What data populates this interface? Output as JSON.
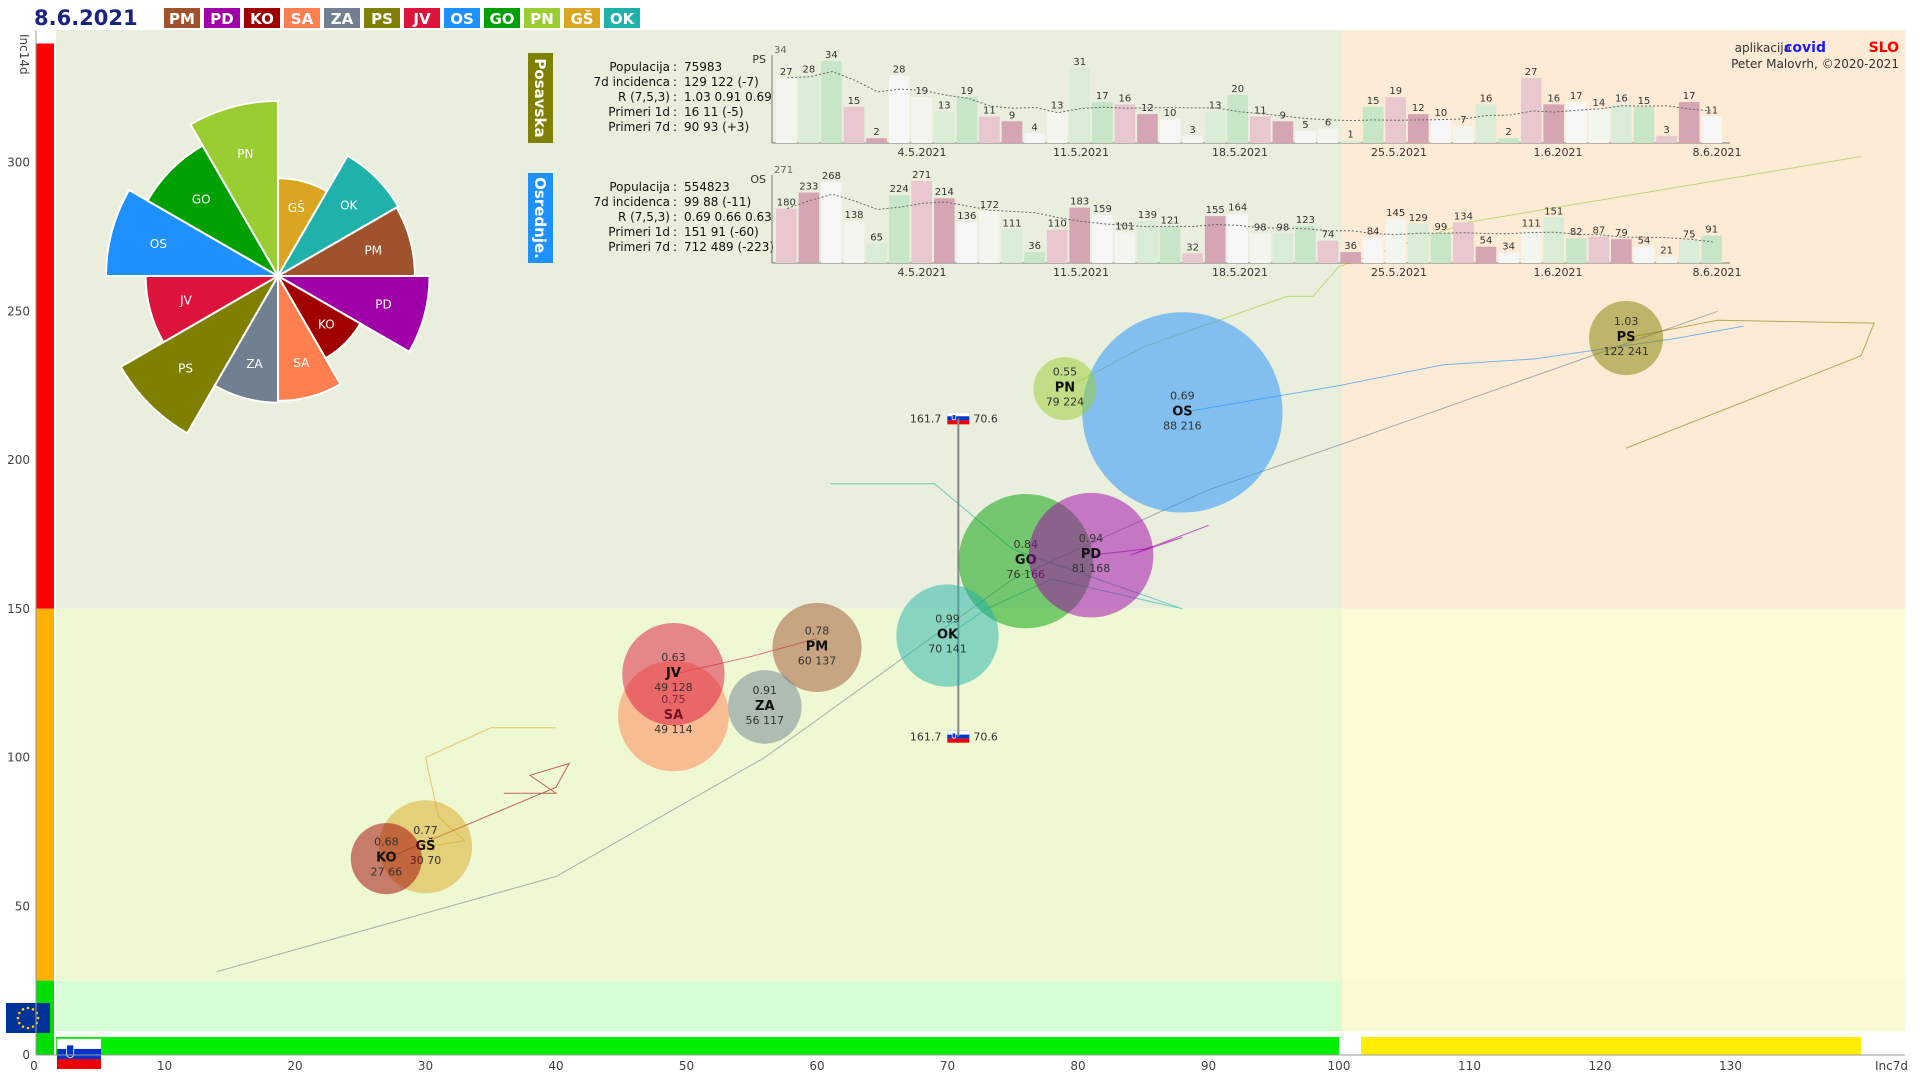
{
  "date": "8.6.2021",
  "credit": {
    "prefix": "aplikacija",
    "brand_a": "covid",
    "brand_b": "SLO",
    "author": "Peter Malovrh, ©2020-2021"
  },
  "colors": {
    "PM": "#a0522d",
    "PD": "#a000a8",
    "KO": "#a00000",
    "SA": "#ff7f50",
    "ZA": "#708090",
    "PS": "#808000",
    "JV": "#dc143c",
    "OS": "#1e90ff",
    "GO": "#00a000",
    "PN": "#9acd32",
    "GS": "#daa520",
    "OK": "#20b2aa"
  },
  "legend": [
    {
      "code": "PM",
      "label": "PM"
    },
    {
      "code": "PD",
      "label": "PD"
    },
    {
      "code": "KO",
      "label": "KO"
    },
    {
      "code": "SA",
      "label": "SA"
    },
    {
      "code": "ZA",
      "label": "ZA"
    },
    {
      "code": "PS",
      "label": "PS"
    },
    {
      "code": "JV",
      "label": "JV"
    },
    {
      "code": "OS",
      "label": "OS"
    },
    {
      "code": "GO",
      "label": "GO"
    },
    {
      "code": "PN",
      "label": "PN"
    },
    {
      "code": "GS",
      "label": "GŠ"
    },
    {
      "code": "OK",
      "label": "OK"
    }
  ],
  "chart_data": {
    "type": "scatter",
    "xlabel": "Inc7d",
    "ylabel": "Inc14d",
    "xlim": [
      0,
      140
    ],
    "ylim": [
      0,
      340
    ],
    "x_ticks": [
      0,
      10,
      20,
      30,
      40,
      50,
      60,
      70,
      80,
      90,
      100,
      110,
      120,
      130
    ],
    "y_ticks": [
      0,
      50,
      100,
      150,
      200,
      250,
      300
    ],
    "zones_y": [
      {
        "from": 150,
        "to": 340,
        "color": "#ff0000"
      },
      {
        "from": 25,
        "to": 150,
        "color": "#ffb000"
      },
      {
        "from": 0,
        "to": 25,
        "color": "#00dd00"
      }
    ],
    "zones_x": [
      {
        "from": 0,
        "to": 100,
        "color": "#00ee00"
      },
      {
        "from": 100,
        "to": 140,
        "color": "#ffee00"
      }
    ],
    "reference": {
      "label_left": "161.7",
      "label_right": "70.6",
      "x": 70.6,
      "y_top": 214,
      "y_bottom": 107
    },
    "bubbles": [
      {
        "code": "PM",
        "label": "PM",
        "r": "0.78",
        "x": 60,
        "y": 137,
        "pop": "60 137"
      },
      {
        "code": "PD",
        "label": "PD",
        "r": "0.94",
        "x": 81,
        "y": 168,
        "pop": "81 168"
      },
      {
        "code": "KO",
        "label": "KO",
        "r": "0.68",
        "x": 27,
        "y": 66,
        "pop": "27 66"
      },
      {
        "code": "SA",
        "label": "SA",
        "r": "0.75",
        "x": 49,
        "y": 114,
        "pop": "49 114"
      },
      {
        "code": "ZA",
        "label": "ZA",
        "r": "0.91",
        "x": 56,
        "y": 117,
        "pop": "56 117"
      },
      {
        "code": "PS",
        "label": "PS",
        "r": "1.03",
        "x": 122,
        "y": 241,
        "pop": "122 241"
      },
      {
        "code": "JV",
        "label": "JV",
        "r": "0.63",
        "x": 49,
        "y": 128,
        "pop": "49 128"
      },
      {
        "code": "OS",
        "label": "OS",
        "r": "0.69",
        "x": 88,
        "y": 216,
        "pop": "88 216"
      },
      {
        "code": "GO",
        "label": "GO",
        "r": "0.84",
        "x": 76,
        "y": 166,
        "pop": "76 166"
      },
      {
        "code": "PN",
        "label": "PN",
        "r": "0.55",
        "x": 79,
        "y": 224,
        "pop": "79 224"
      },
      {
        "code": "GS",
        "label": "GŠ",
        "r": "0.77",
        "x": 30,
        "y": 70,
        "pop": "30 70"
      },
      {
        "code": "OK",
        "label": "OK",
        "r": "0.99",
        "x": 70,
        "y": 141,
        "pop": "70 141"
      }
    ],
    "pie": [
      {
        "code": "OS",
        "label": "OS",
        "value": 216
      },
      {
        "code": "GO",
        "label": "GO",
        "value": 166
      },
      {
        "code": "PN",
        "label": "PN",
        "value": 224
      },
      {
        "code": "GS",
        "label": "GŠ",
        "value": 70
      },
      {
        "code": "OK",
        "label": "OK",
        "value": 141
      },
      {
        "code": "PM",
        "label": "PM",
        "value": 137
      },
      {
        "code": "PD",
        "label": "PD",
        "value": 168
      },
      {
        "code": "KO",
        "label": "KO",
        "value": 66
      },
      {
        "code": "SA",
        "label": "SA",
        "value": 114
      },
      {
        "code": "ZA",
        "label": "ZA",
        "value": 117
      },
      {
        "code": "PS",
        "label": "PS",
        "value": 241
      },
      {
        "code": "JV",
        "label": "JV",
        "value": 128
      }
    ],
    "panels": [
      {
        "name": "Posavska",
        "code": "PS",
        "tag": "PS",
        "stats": [
          {
            "k": "Populacija",
            "v": "75983"
          },
          {
            "k": "7d incidenca",
            "v": "129 122 (-7)"
          },
          {
            "k": "R (7,5,3)",
            "v": "1.03 0.91 0.69"
          },
          {
            "k": "Primeri 1d",
            "v": "16 11 (-5)"
          },
          {
            "k": "Primeri 7d",
            "v": "90 93 (+3)"
          }
        ],
        "max_label": "34",
        "dates": [
          "4.5.2021",
          "11.5.2021",
          "18.5.2021",
          "25.5.2021",
          "1.6.2021",
          "8.6.2021"
        ],
        "bars": [
          27,
          28,
          34,
          15,
          2,
          28,
          19,
          13,
          19,
          11,
          9,
          4,
          13,
          31,
          17,
          16,
          12,
          10,
          3,
          13,
          20,
          11,
          9,
          5,
          6,
          1,
          15,
          19,
          12,
          10,
          7,
          16,
          2,
          27,
          16,
          17,
          14,
          16,
          15,
          3,
          17,
          11
        ]
      },
      {
        "name": "Osrednje.",
        "code": "OS",
        "tag": "OS",
        "stats": [
          {
            "k": "Populacija",
            "v": "554823"
          },
          {
            "k": "7d incidenca",
            "v": "99 88 (-11)"
          },
          {
            "k": "R (7,5,3)",
            "v": "0.69 0.66 0.63"
          },
          {
            "k": "Primeri 1d",
            "v": "151 91 (-60)"
          },
          {
            "k": "Primeri 7d",
            "v": "712 489 (-223)"
          }
        ],
        "max_label": "271",
        "dates": [
          "4.5.2021",
          "11.5.2021",
          "18.5.2021",
          "25.5.2021",
          "1.6.2021",
          "8.6.2021"
        ],
        "bars": [
          180,
          233,
          268,
          138,
          65,
          224,
          271,
          214,
          136,
          172,
          111,
          36,
          110,
          183,
          159,
          101,
          139,
          121,
          32,
          155,
          164,
          98,
          98,
          123,
          74,
          36,
          84,
          145,
          129,
          99,
          134,
          54,
          34,
          111,
          151,
          82,
          87,
          79,
          54,
          21,
          75,
          91
        ]
      }
    ]
  }
}
